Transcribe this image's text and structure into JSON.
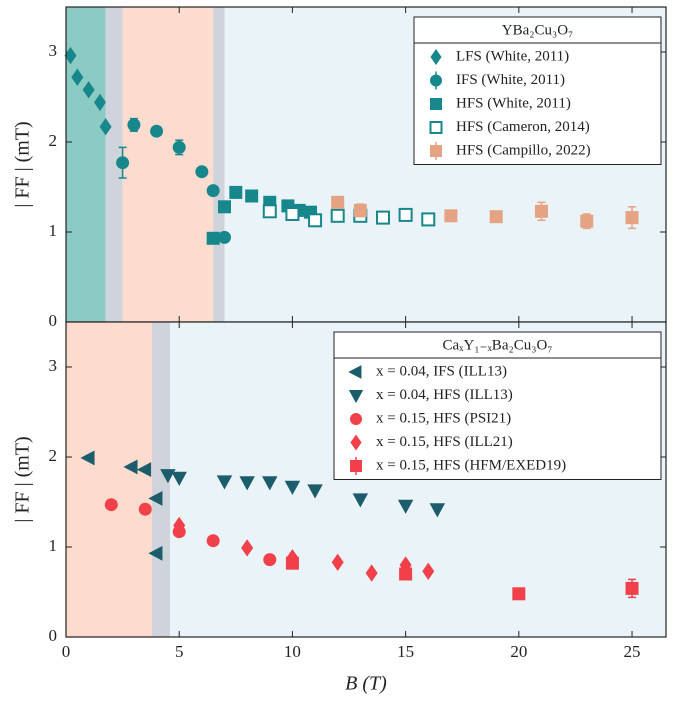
{
  "chart_data": [
    {
      "type": "scatter",
      "ylabel": "| FF | (mT)",
      "xlim": [
        0,
        26.5
      ],
      "ylim": [
        0,
        3.5
      ],
      "yticks": [
        0,
        1,
        2,
        3
      ],
      "legend_title": "YBa₂Cu₃O₇",
      "legend": "upper right",
      "regions": [
        {
          "x": [
            0,
            1.75
          ],
          "color": "#8ccac4"
        },
        {
          "x": [
            1.75,
            2.5
          ],
          "color": "#cfd4dc"
        },
        {
          "x": [
            2.5,
            6.5
          ],
          "color": "#fddccf"
        },
        {
          "x": [
            6.5,
            7
          ],
          "color": "#cfd4dc"
        },
        {
          "x": [
            7,
            26.5
          ],
          "color": "#eaf4f8"
        }
      ],
      "series": [
        {
          "name": "LFS (White, 2011)",
          "color": "#17878c",
          "marker": "diamond",
          "filled": true,
          "x": [
            0.2,
            0.5,
            1.0,
            1.5,
            1.75
          ],
          "values": [
            2.96,
            2.72,
            2.58,
            2.44,
            2.17
          ]
        },
        {
          "name": "IFS (White, 2011)",
          "color": "#17878c",
          "marker": "circle",
          "filled": true,
          "x": [
            2.5,
            3.0,
            4.0,
            5.0,
            6.0,
            6.5,
            7.0
          ],
          "values": [
            1.77,
            2.19,
            2.12,
            1.94,
            1.67,
            1.46,
            0.94
          ],
          "errors": [
            0.17,
            0.07,
            0.03,
            0.08,
            0.04,
            0.03,
            0.03
          ]
        },
        {
          "name": "HFS (White, 2011)",
          "color": "#17878c",
          "marker": "square",
          "filled": true,
          "x": [
            6.5,
            7.0,
            7.5,
            8.2,
            9.0,
            9.8,
            10.3,
            10.8
          ],
          "values": [
            0.93,
            1.28,
            1.44,
            1.4,
            1.33,
            1.29,
            1.24,
            1.22
          ]
        },
        {
          "name": "HFS (Cameron, 2014)",
          "color": "#17878c",
          "marker": "square",
          "filled": false,
          "x": [
            9,
            10,
            11,
            12,
            13,
            14,
            15,
            16
          ],
          "values": [
            1.23,
            1.2,
            1.13,
            1.18,
            1.18,
            1.16,
            1.19,
            1.14
          ]
        },
        {
          "name": "HFS (Campillo, 2022)",
          "color": "#e6a383",
          "marker": "square",
          "filled": true,
          "x": [
            12,
            13,
            17,
            19,
            21,
            23,
            25
          ],
          "values": [
            1.33,
            1.24,
            1.18,
            1.17,
            1.23,
            1.12,
            1.16
          ],
          "errors": [
            0.06,
            0.07,
            0.04,
            0.04,
            0.1,
            0.08,
            0.12
          ]
        }
      ]
    },
    {
      "type": "scatter",
      "ylabel": "| FF | (mT)",
      "xlabel": "B (T)",
      "xlim": [
        0,
        26.5
      ],
      "ylim": [
        0,
        3.5
      ],
      "yticks": [
        0,
        1,
        2,
        3
      ],
      "xticks": [
        0,
        5,
        10,
        15,
        20,
        25
      ],
      "legend_title": "CaₓY₁₋ₓBa₂Cu₃O₇",
      "legend": "upper right",
      "regions": [
        {
          "x": [
            0,
            3.8
          ],
          "color": "#fddccf"
        },
        {
          "x": [
            3.8,
            4.6
          ],
          "color": "#cfd4dc"
        },
        {
          "x": [
            4.6,
            26.5
          ],
          "color": "#eaf4f8"
        }
      ],
      "series": [
        {
          "name": "x = 0.04, IFS (ILL13)",
          "color": "#1c5d6c",
          "marker": "triangle-left",
          "filled": true,
          "x": [
            1.0,
            2.9,
            3.5,
            4.0,
            4.0
          ],
          "values": [
            1.99,
            1.89,
            1.86,
            1.54,
            0.93
          ]
        },
        {
          "name": "x = 0.04, HFS (ILL13)",
          "color": "#1c5d6c",
          "marker": "triangle-down",
          "filled": true,
          "x": [
            4.5,
            5,
            7,
            8,
            9,
            10,
            11,
            13,
            15,
            16.4
          ],
          "values": [
            1.8,
            1.77,
            1.73,
            1.72,
            1.72,
            1.67,
            1.63,
            1.53,
            1.46,
            1.42
          ]
        },
        {
          "name": "x = 0.15, HFS (PSI21)",
          "color": "#f0404a",
          "marker": "circle",
          "filled": true,
          "x": [
            2.0,
            3.5,
            5.0,
            6.5,
            9.0
          ],
          "values": [
            1.47,
            1.42,
            1.17,
            1.07,
            0.86
          ]
        },
        {
          "name": "x = 0.15, HFS (ILL21)",
          "color": "#f0404a",
          "marker": "diamond",
          "filled": true,
          "x": [
            5,
            8,
            10,
            12,
            13.5,
            15,
            16
          ],
          "values": [
            1.24,
            0.99,
            0.88,
            0.83,
            0.71,
            0.8,
            0.73
          ]
        },
        {
          "name": "x = 0.15, HFS (HFM/EXED19)",
          "color": "#f0404a",
          "marker": "square",
          "filled": true,
          "x": [
            10,
            15,
            20,
            25
          ],
          "values": [
            0.82,
            0.7,
            0.48,
            0.54
          ],
          "errors": [
            0.03,
            0.03,
            0.03,
            0.1
          ]
        }
      ]
    }
  ]
}
